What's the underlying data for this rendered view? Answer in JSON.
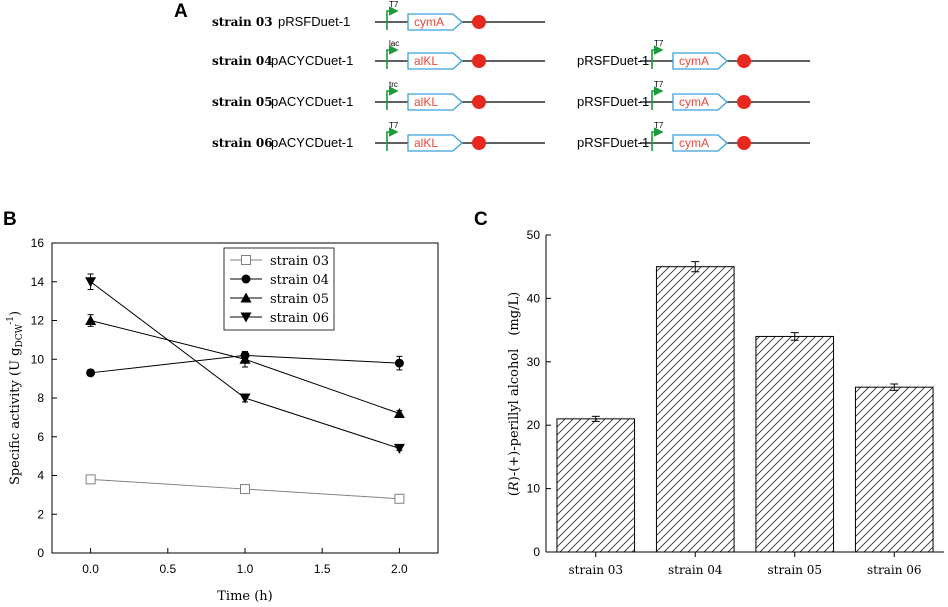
{
  "panels": {
    "a": "A",
    "b": "B",
    "c": "C"
  },
  "panel_a": {
    "rows": [
      {
        "strain": "strain 03",
        "constructs": [
          {
            "plasmid": "pRSFDuet-1",
            "promoter": "T7",
            "gene": "cymA"
          }
        ]
      },
      {
        "strain": "strain 04",
        "constructs": [
          {
            "plasmid": "pACYCDuet-1",
            "promoter": "lac",
            "gene": "alKL"
          },
          {
            "plasmid": "pRSFDuet-1",
            "promoter": "T7",
            "gene": "cymA"
          }
        ]
      },
      {
        "strain": "strain 05",
        "constructs": [
          {
            "plasmid": "pACYCDuet-1",
            "promoter": "trc",
            "gene": "alKL"
          },
          {
            "plasmid": "pRSFDuet-1",
            "promoter": "T7",
            "gene": "cymA"
          }
        ]
      },
      {
        "strain": "strain 06",
        "constructs": [
          {
            "plasmid": "pACYCDuet-1",
            "promoter": "T7",
            "gene": "alKL"
          },
          {
            "plasmid": "pRSFDuet-1",
            "promoter": "T7",
            "gene": "cymA"
          }
        ]
      }
    ],
    "colors": {
      "promoter": "#1a9a3a",
      "gene_box": "#3aa0dc",
      "gene_text": "#e8473a",
      "terminator": "#e8281e"
    }
  },
  "chart_data": [
    {
      "type": "line",
      "panel": "B",
      "xlabel": "Time (h)",
      "ylabel": "Specific  activity (U g",
      "ylabel_sub": "DCW",
      "ylabel_sup": "-1",
      "ylabel_close": ")",
      "xlim": [
        -0.25,
        2.25
      ],
      "ylim": [
        0,
        16
      ],
      "xticks": [
        0.0,
        0.5,
        1.0,
        1.5,
        2.0
      ],
      "xtick_labels": [
        "0.0",
        "0.5",
        "1.0",
        "1.5",
        "2.0"
      ],
      "yticks": [
        0,
        2,
        4,
        6,
        8,
        10,
        12,
        14,
        16
      ],
      "ytick_labels": [
        "0",
        "2",
        "4",
        "6",
        "8",
        "10",
        "12",
        "14",
        "16"
      ],
      "legend_position": "top-right",
      "series": [
        {
          "name": "strain 03",
          "marker": "square-open",
          "color": "#808080",
          "x": [
            0,
            1,
            2
          ],
          "values": [
            3.8,
            3.3,
            2.8
          ],
          "err": [
            0.1,
            0.1,
            0.1
          ]
        },
        {
          "name": "strain 04",
          "marker": "circle",
          "color": "#000000",
          "x": [
            0,
            1,
            2
          ],
          "values": [
            9.3,
            10.2,
            9.8
          ],
          "err": [
            0.15,
            0.2,
            0.35
          ]
        },
        {
          "name": "strain 05",
          "marker": "triangle-up",
          "color": "#000000",
          "x": [
            0,
            1,
            2
          ],
          "values": [
            12.0,
            10.0,
            7.2
          ],
          "err": [
            0.3,
            0.4,
            0.15
          ]
        },
        {
          "name": "strain 06",
          "marker": "triangle-down",
          "color": "#000000",
          "x": [
            0,
            1,
            2
          ],
          "values": [
            14.0,
            8.0,
            5.4
          ],
          "err": [
            0.4,
            0.2,
            0.1
          ]
        }
      ]
    },
    {
      "type": "bar",
      "panel": "C",
      "ylabel_italic": "R",
      "ylabel": "(R)-(+)-perillyl alcohol　(mg/L)",
      "ylabel_pre": "(",
      "ylabel_post": ")-(+)-perillyl alcohol　(mg/L)",
      "ylim": [
        0,
        50
      ],
      "yticks": [
        0,
        10,
        20,
        30,
        40,
        50
      ],
      "ytick_labels": [
        "0",
        "10",
        "20",
        "30",
        "40",
        "50"
      ],
      "categories": [
        "strain 03",
        "strain 04",
        "strain 05",
        "strain 06"
      ],
      "values": [
        21,
        45,
        34,
        26
      ],
      "err": [
        0.4,
        0.8,
        0.6,
        0.5
      ],
      "fill": "hatched"
    }
  ]
}
